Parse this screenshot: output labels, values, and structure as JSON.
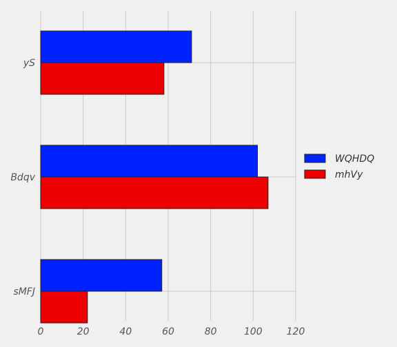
{
  "chart_data": {
    "type": "bar",
    "orientation": "horizontal",
    "categories": [
      "yS",
      "Bdqv",
      "sMFJ"
    ],
    "series": [
      {
        "name": "WQHDQ",
        "color": "#0022ff",
        "values": [
          71,
          102,
          57
        ]
      },
      {
        "name": "mhVy",
        "color": "#ee0000",
        "values": [
          58,
          107,
          22
        ]
      }
    ],
    "xlim": [
      0,
      120
    ],
    "xticks": [
      "0",
      "20",
      "40",
      "60",
      "80",
      "100",
      "120"
    ],
    "grid": true,
    "legend": "right",
    "background": "#f0f0f0"
  }
}
